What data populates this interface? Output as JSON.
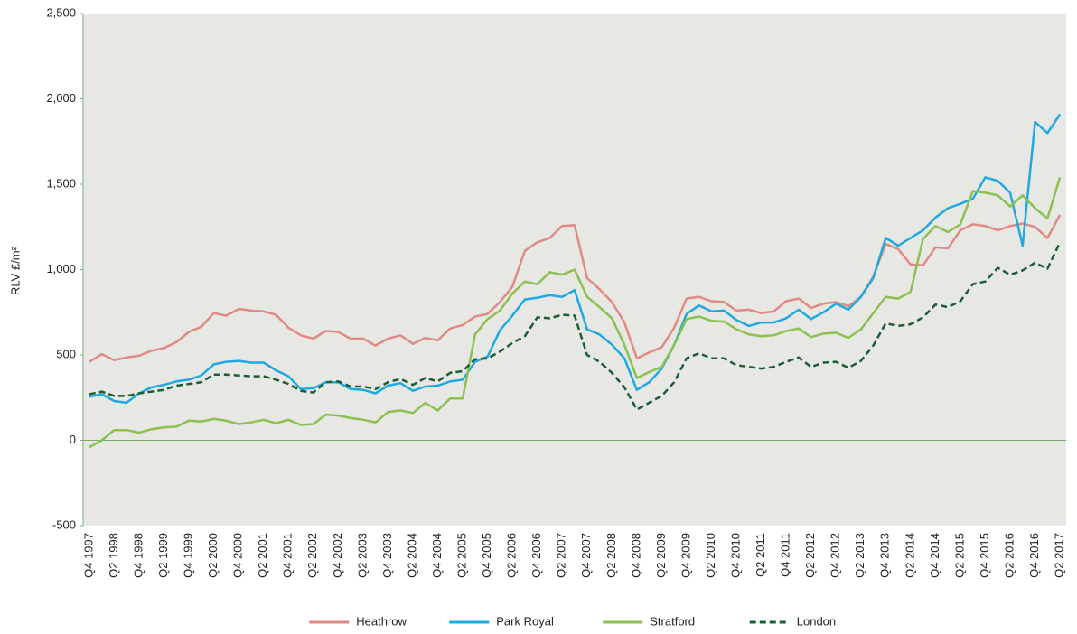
{
  "chart_data": {
    "type": "line",
    "y_label": "RLV £/m²",
    "categories": [
      "Q4 1997",
      null,
      "Q2 1998",
      null,
      "Q4 1998",
      null,
      "Q2 1999",
      null,
      "Q4 1999",
      null,
      "Q2 2000",
      null,
      "Q4 2000",
      null,
      "Q2 2001",
      null,
      "Q4 2001",
      null,
      "Q2 2002",
      null,
      "Q4 2002",
      null,
      "Q2 2003",
      null,
      "Q4 2003",
      null,
      "Q2 2004",
      null,
      "Q4 2004",
      null,
      "Q2 2005",
      null,
      "Q4 2005",
      null,
      "Q2 2006",
      null,
      "Q4 2006",
      null,
      "Q2 2007",
      null,
      "Q4 2007",
      null,
      "Q2 2008",
      null,
      "Q4 2008",
      null,
      "Q2 2009",
      null,
      "Q4 2009",
      null,
      "Q2 2010",
      null,
      "Q4 2010",
      null,
      "Q2 2011",
      null,
      "Q4 2011",
      null,
      "Q2 2012",
      null,
      "Q4 2012",
      null,
      "Q2 2013",
      null,
      "Q4 2013",
      null,
      "Q2 2014",
      null,
      "Q4 2014",
      null,
      "Q2 2015",
      null,
      "Q4 2015",
      null,
      "Q2 2016",
      null,
      "Q4 2016",
      null,
      "Q2 2017"
    ],
    "series": [
      {
        "name": "Heathrow",
        "color": "#e08a86",
        "dashed": false,
        "values": [
          460,
          505,
          470,
          485,
          495,
          525,
          540,
          575,
          635,
          665,
          745,
          730,
          770,
          760,
          755,
          735,
          660,
          615,
          595,
          640,
          635,
          595,
          595,
          555,
          595,
          615,
          565,
          600,
          585,
          655,
          675,
          725,
          740,
          810,
          900,
          1110,
          1160,
          1185,
          1255,
          1260,
          950,
          885,
          810,
          690,
          480,
          515,
          545,
          660,
          830,
          840,
          815,
          810,
          760,
          765,
          745,
          755,
          815,
          830,
          775,
          800,
          810,
          785,
          840,
          960,
          1150,
          1120,
          1030,
          1025,
          1130,
          1125,
          1230,
          1265,
          1255,
          1230,
          1255,
          1270,
          1250,
          1185,
          1320
        ]
      },
      {
        "name": "Park Royal",
        "color": "#1fa9e1",
        "dashed": false,
        "values": [
          255,
          270,
          230,
          220,
          275,
          310,
          325,
          345,
          355,
          380,
          445,
          460,
          465,
          455,
          455,
          410,
          375,
          300,
          305,
          340,
          340,
          300,
          295,
          275,
          320,
          335,
          290,
          315,
          320,
          345,
          355,
          460,
          490,
          645,
          730,
          825,
          835,
          850,
          840,
          880,
          650,
          620,
          560,
          480,
          295,
          340,
          420,
          560,
          740,
          790,
          755,
          760,
          705,
          670,
          690,
          690,
          715,
          765,
          710,
          750,
          800,
          765,
          840,
          950,
          1185,
          1140,
          1185,
          1230,
          1305,
          1360,
          1385,
          1415,
          1540,
          1520,
          1450,
          1140,
          1865,
          1800,
          1910
        ]
      },
      {
        "name": "Stratford",
        "color": "#8cc152",
        "dashed": false,
        "values": [
          -40,
          0,
          60,
          60,
          45,
          65,
          75,
          80,
          115,
          110,
          125,
          115,
          95,
          105,
          120,
          100,
          120,
          90,
          95,
          150,
          145,
          130,
          120,
          105,
          165,
          175,
          160,
          220,
          175,
          245,
          245,
          620,
          710,
          760,
          860,
          930,
          915,
          985,
          970,
          1000,
          840,
          780,
          715,
          560,
          365,
          400,
          430,
          560,
          710,
          725,
          700,
          695,
          650,
          620,
          610,
          615,
          640,
          655,
          605,
          625,
          630,
          600,
          650,
          745,
          840,
          830,
          870,
          1180,
          1255,
          1220,
          1265,
          1460,
          1450,
          1435,
          1370,
          1435,
          1360,
          1300,
          1540
        ]
      },
      {
        "name": "London",
        "color": "#1b5e34",
        "dashed": true,
        "values": [
          270,
          285,
          260,
          260,
          275,
          285,
          295,
          320,
          330,
          340,
          385,
          385,
          380,
          375,
          375,
          355,
          330,
          290,
          280,
          340,
          345,
          315,
          315,
          300,
          340,
          360,
          325,
          365,
          345,
          395,
          405,
          475,
          480,
          520,
          570,
          610,
          720,
          715,
          735,
          730,
          500,
          460,
          395,
          310,
          180,
          220,
          260,
          340,
          480,
          510,
          480,
          480,
          440,
          430,
          420,
          430,
          460,
          485,
          430,
          455,
          460,
          425,
          465,
          555,
          685,
          670,
          680,
          720,
          795,
          780,
          815,
          915,
          930,
          1010,
          970,
          995,
          1040,
          1005,
          1160
        ]
      }
    ],
    "ylim": [
      -500,
      2500
    ],
    "yticks": [
      -500,
      0,
      500,
      {
        "value": 1000,
        "label": "1,000"
      },
      {
        "value": 1500,
        "label": "1,500"
      },
      {
        "value": 2000,
        "label": "2,000"
      },
      {
        "value": 2500,
        "label": "2,500"
      }
    ],
    "legend": "bottom"
  }
}
